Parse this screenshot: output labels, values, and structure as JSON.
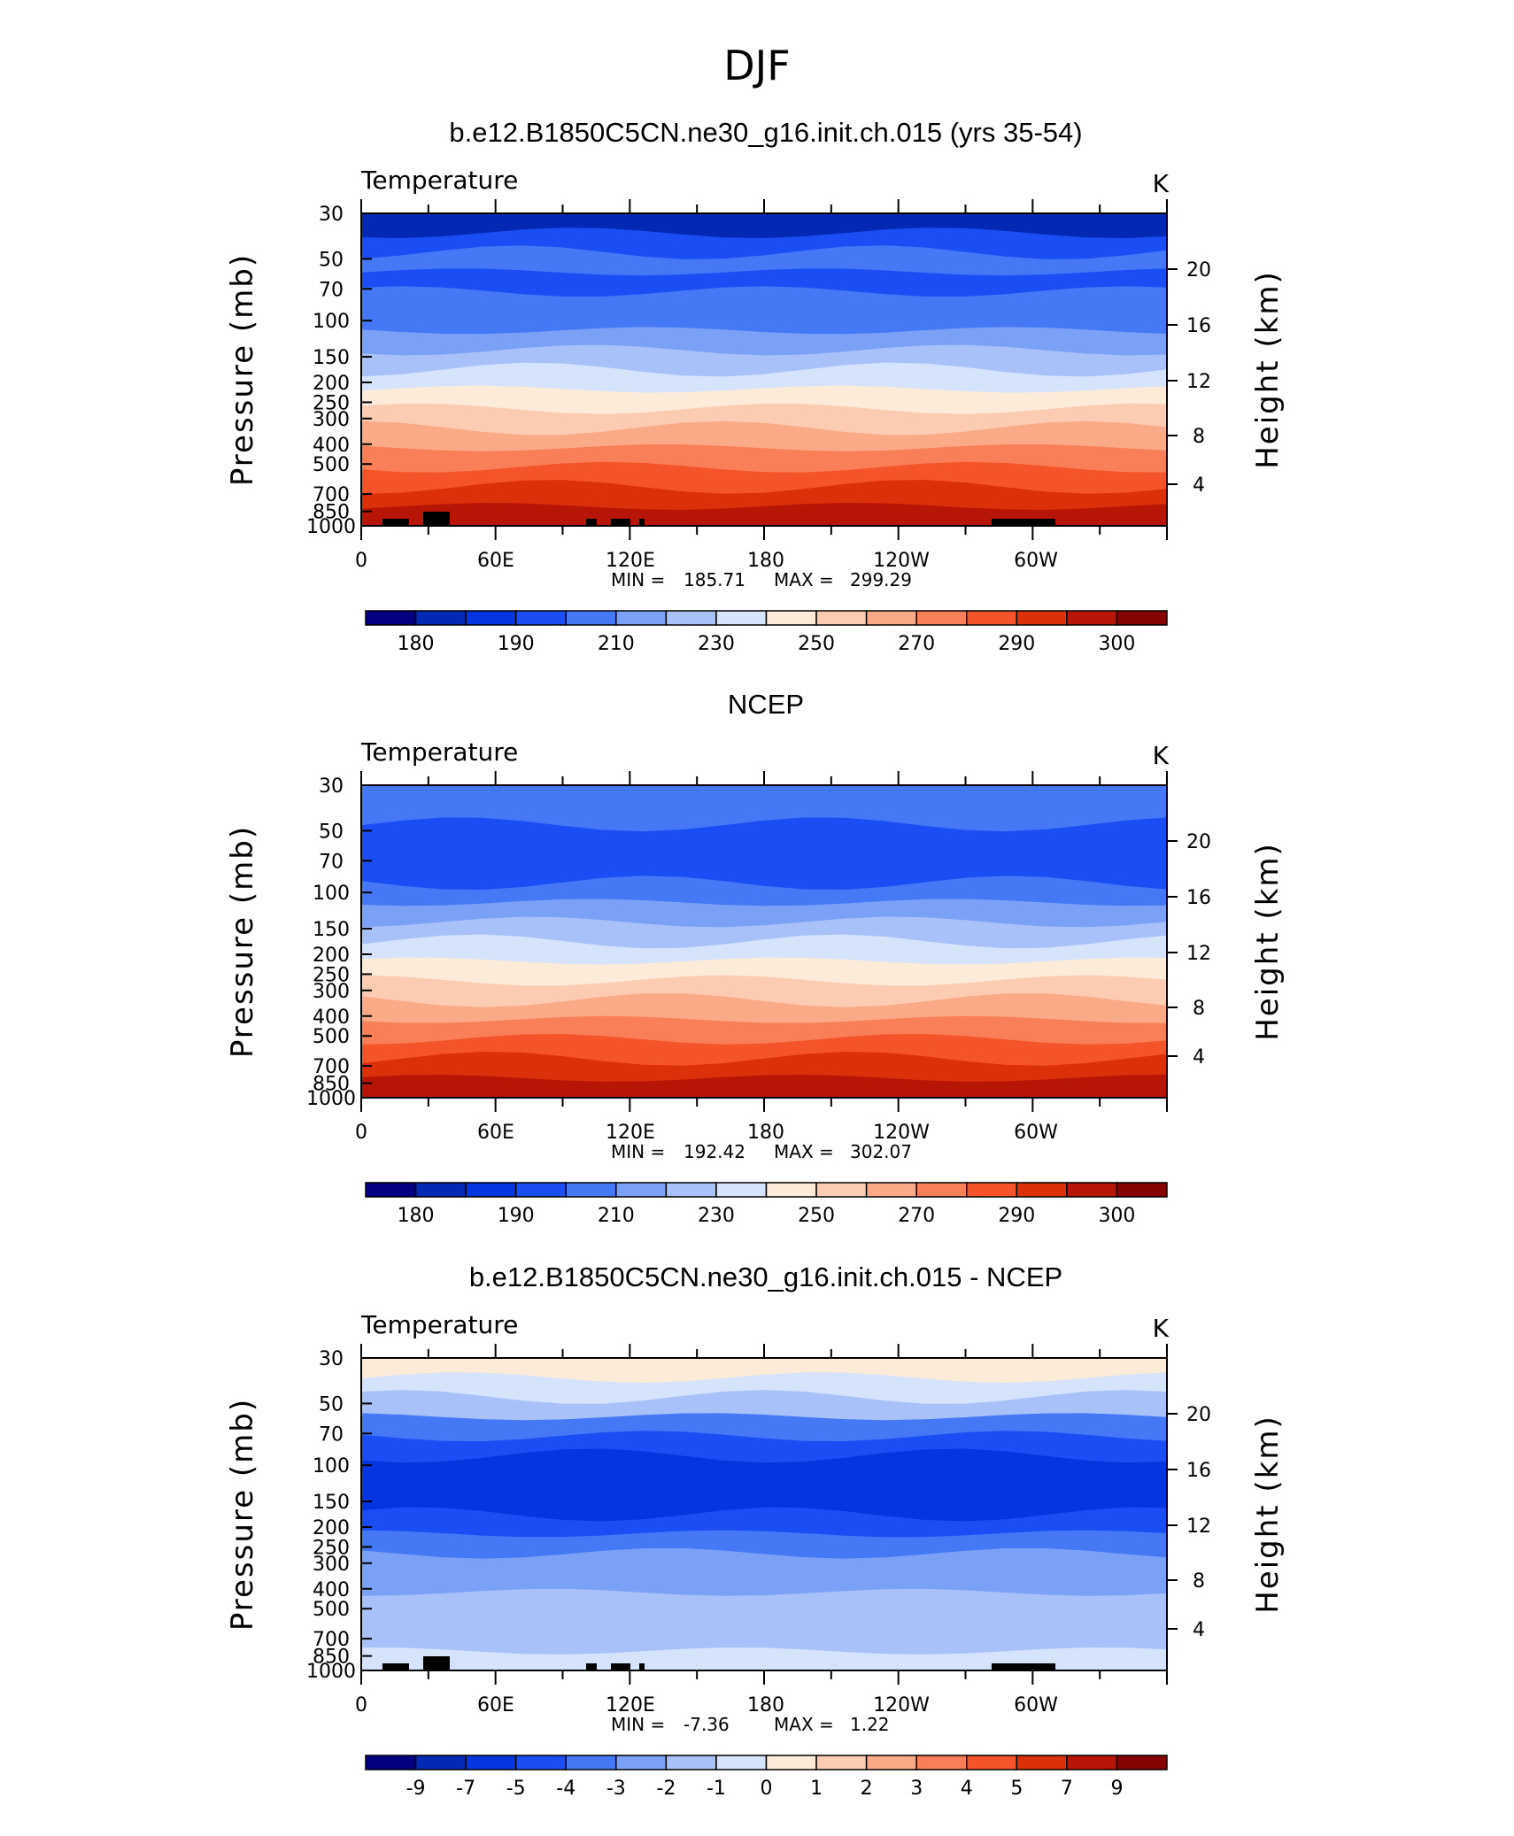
{
  "figure": {
    "title": "DJF"
  },
  "colors": {
    "temperature_levels": [
      "#02007e",
      "#0329b4",
      "#0535df",
      "#1a4ef4",
      "#4478f4",
      "#7ba1f7",
      "#a8c2f9",
      "#d5e3fb",
      "#fcebd9",
      "#fcccb2",
      "#fbaa88",
      "#f87f57",
      "#f5542a",
      "#dc300b",
      "#b71606",
      "#840402"
    ],
    "terrain": "#000000"
  },
  "chart_data": [
    {
      "type": "contour",
      "title": "b.e12.B1850C5CN.ne30_g16.init.ch.015 (yrs 35-54)",
      "variable": "Temperature",
      "units": "K",
      "ylabel": "Pressure (mb)",
      "ylabel_right": "Height (km)",
      "y_ticks": [
        "30",
        "50",
        "70",
        "100",
        "150",
        "200",
        "250",
        "300",
        "400",
        "500",
        "700",
        "850",
        "1000"
      ],
      "y_ticks_right": [
        "20",
        "16",
        "12",
        "8",
        "4"
      ],
      "x_ticks": [
        "0",
        "60E",
        "120E",
        "180",
        "120W",
        "60W"
      ],
      "min_label": "MIN =",
      "min_value": "185.71",
      "max_label": "MAX =",
      "max_value": "299.29",
      "colorbar_labels": [
        "180",
        "190",
        "210",
        "230",
        "250",
        "270",
        "290",
        "300"
      ],
      "bands": [
        1,
        3,
        4,
        3,
        4,
        4,
        5,
        6,
        7,
        8,
        9,
        10,
        11,
        12,
        13,
        14
      ]
    },
    {
      "type": "contour",
      "title": "NCEP",
      "variable": "Temperature",
      "units": "K",
      "ylabel": "Pressure (mb)",
      "ylabel_right": "Height (km)",
      "y_ticks": [
        "30",
        "50",
        "70",
        "100",
        "150",
        "200",
        "250",
        "300",
        "400",
        "500",
        "700",
        "850",
        "1000"
      ],
      "y_ticks_right": [
        "20",
        "16",
        "12",
        "8",
        "4"
      ],
      "x_ticks": [
        "0",
        "60E",
        "120E",
        "180",
        "120W",
        "60W"
      ],
      "min_label": "MIN =",
      "min_value": "192.42",
      "max_label": "MAX =",
      "max_value": "302.07",
      "colorbar_labels": [
        "180",
        "190",
        "210",
        "230",
        "250",
        "270",
        "290",
        "300"
      ],
      "bands": [
        4,
        4,
        3,
        3,
        3,
        4,
        5,
        6,
        7,
        8,
        9,
        10,
        11,
        12,
        13,
        14
      ]
    },
    {
      "type": "contour",
      "title": "b.e12.B1850C5CN.ne30_g16.init.ch.015 - NCEP",
      "variable": "Temperature",
      "units": "K",
      "ylabel": "Pressure (mb)",
      "ylabel_right": "Height (km)",
      "y_ticks": [
        "30",
        "50",
        "70",
        "100",
        "150",
        "200",
        "250",
        "300",
        "400",
        "500",
        "700",
        "850",
        "1000"
      ],
      "y_ticks_right": [
        "20",
        "16",
        "12",
        "8",
        "4"
      ],
      "x_ticks": [
        "0",
        "60E",
        "120E",
        "180",
        "120W",
        "60W"
      ],
      "min_label": "MIN =",
      "min_value": "-7.36",
      "max_label": "MAX =",
      "max_value": "1.22",
      "colorbar_labels": [
        "-9",
        "-7",
        "-5",
        "-4",
        "-3",
        "-2",
        "-1",
        "0",
        "1",
        "2",
        "3",
        "4",
        "5",
        "7",
        "9"
      ],
      "bands": [
        8,
        7,
        6,
        4,
        3,
        2,
        2,
        2,
        3,
        4,
        5,
        5,
        6,
        6,
        6,
        7
      ]
    }
  ]
}
